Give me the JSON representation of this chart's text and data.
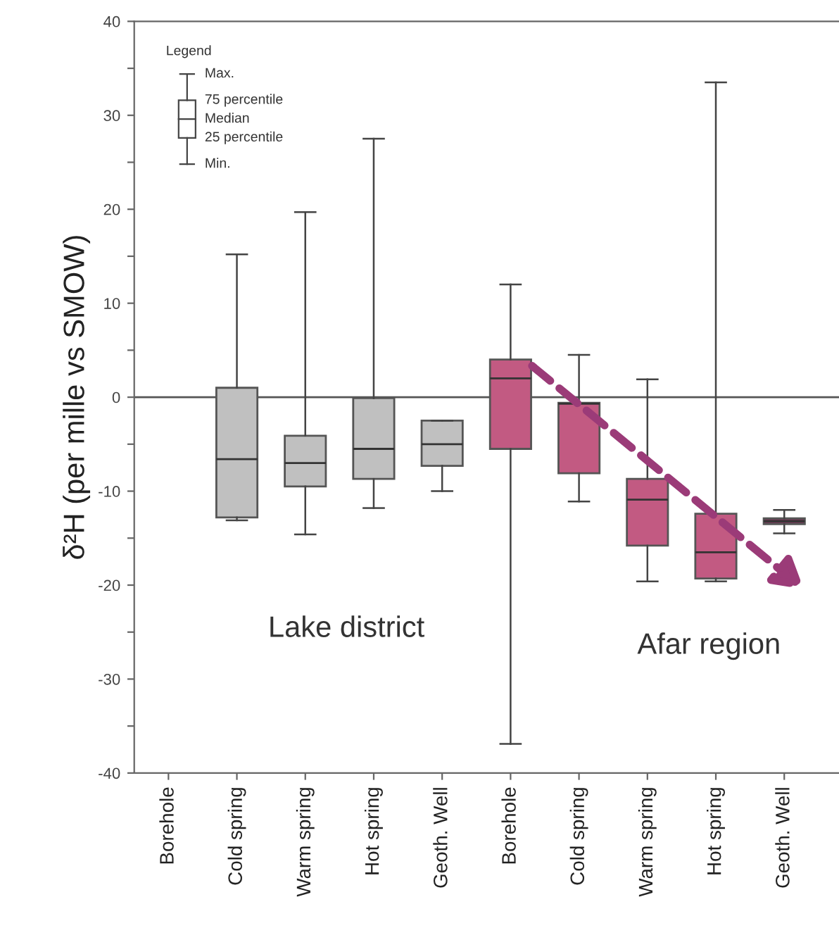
{
  "chart_data": {
    "type": "box",
    "ylabel": "δ²H (per mille vs SMOW)",
    "categories": [
      "Borehole",
      "Cold spring",
      "Warm spring",
      "Hot spring",
      "Geoth. Well",
      "Borehole",
      "Cold spring",
      "Warm spring",
      "Hot spring",
      "Geoth. Well"
    ],
    "boxes": [
      null,
      {
        "low": -13.1,
        "q1": -12.8,
        "median": -6.6,
        "q3": 1.0,
        "high": 15.2
      },
      {
        "low": -14.6,
        "q1": -9.5,
        "median": -7.0,
        "q3": -4.1,
        "high": 19.7
      },
      {
        "low": -11.8,
        "q1": -8.7,
        "median": -5.5,
        "q3": -0.1,
        "high": 27.5
      },
      {
        "low": -10.0,
        "q1": -7.3,
        "median": -5.0,
        "q3": -2.5,
        "high": -2.5
      },
      {
        "low": -36.9,
        "q1": -5.5,
        "median": 2.0,
        "q3": 4.0,
        "high": 12.0
      },
      {
        "low": -11.1,
        "q1": -8.1,
        "median": -0.7,
        "q3": -0.6,
        "high": 4.5
      },
      {
        "low": -19.6,
        "q1": -15.8,
        "median": -10.9,
        "q3": -8.7,
        "high": 1.9
      },
      {
        "low": -19.6,
        "q1": -19.3,
        "median": -16.5,
        "q3": -12.4,
        "high": 33.5
      },
      {
        "low": -14.5,
        "q1": -13.5,
        "median": -13.2,
        "q3": -12.9,
        "high": -12.0
      }
    ],
    "colors": [
      null,
      "#c0c0c0",
      "#c0c0c0",
      "#c0c0c0",
      "#c0c0c0",
      "#c25a82",
      "#c25a82",
      "#c25a82",
      "#c25a82",
      "#7a3558"
    ],
    "ylim": [
      -40,
      40
    ],
    "yticks": [
      -40,
      {
        "value": -35,
        "label": null
      },
      -30,
      {
        "value": -25,
        "label": null
      },
      -20,
      {
        "value": -15,
        "label": null
      },
      -10,
      {
        "value": -5,
        "label": null
      },
      0,
      {
        "value": 5,
        "label": null
      },
      10,
      {
        "value": 15,
        "label": null
      },
      20,
      {
        "value": 25,
        "label": null
      },
      30,
      {
        "value": 35,
        "label": null
      },
      40
    ],
    "ref_lines": [
      {
        "axis": "y",
        "value": 0,
        "color": "#555555"
      }
    ],
    "annotations": [
      "Lake district",
      "Afar region",
      "Legend",
      "Max.",
      "75 percentile",
      "Median",
      "25 percentile",
      "Min."
    ],
    "grid": false
  }
}
